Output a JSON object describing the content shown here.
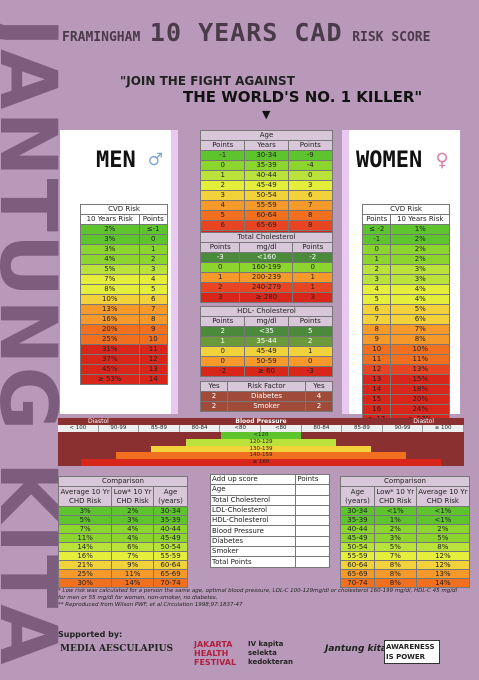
{
  "side_text": "JANTUNG KITA",
  "title": {
    "pre": "FRAMINGHAM",
    "big": "10 YEARS CAD",
    "post": "RISK SCORE"
  },
  "slogan": {
    "line1": "\"JOIN THE FIGHT AGAINST",
    "line2": "THE WORLD'S NO. 1 KILLER\""
  },
  "men": {
    "label": "MEN",
    "table_title": "CVD Risk",
    "col1": "10 Years Risk",
    "col2": "Points",
    "rows": [
      [
        "2%",
        "≤-1"
      ],
      [
        "3%",
        "0"
      ],
      [
        "3%",
        "1"
      ],
      [
        "4%",
        "2"
      ],
      [
        "5%",
        "3"
      ],
      [
        "7%",
        "4"
      ],
      [
        "8%",
        "5"
      ],
      [
        "10%",
        "6"
      ],
      [
        "13%",
        "7"
      ],
      [
        "16%",
        "8"
      ],
      [
        "20%",
        "9"
      ],
      [
        "25%",
        "10"
      ],
      [
        "31%",
        "11"
      ],
      [
        "37%",
        "12"
      ],
      [
        "45%",
        "13"
      ],
      [
        "≥ 53%",
        "14"
      ]
    ]
  },
  "women": {
    "label": "WOMEN",
    "table_title": "CVD Risk",
    "col1": "Points",
    "col2": "10 Years Risk",
    "rows": [
      [
        "≤ -2",
        "1%"
      ],
      [
        "-1",
        "2%"
      ],
      [
        "0",
        "2%"
      ],
      [
        "1",
        "2%"
      ],
      [
        "2",
        "3%"
      ],
      [
        "3",
        "3%"
      ],
      [
        "4",
        "4%"
      ],
      [
        "5",
        "4%"
      ],
      [
        "6",
        "5%"
      ],
      [
        "7",
        "6%"
      ],
      [
        "8",
        "7%"
      ],
      [
        "9",
        "8%"
      ],
      [
        "10",
        "10%"
      ],
      [
        "11",
        "11%"
      ],
      [
        "12",
        "13%"
      ],
      [
        "13",
        "15%"
      ],
      [
        "14",
        "18%"
      ],
      [
        "15",
        "20%"
      ],
      [
        "16",
        "24%"
      ],
      [
        "≥ 17",
        "≥ 27%"
      ]
    ]
  },
  "age": {
    "title": "Age",
    "cols": [
      "Points",
      "Years",
      "Points"
    ],
    "rows": [
      [
        "-1",
        "30-34",
        "-9"
      ],
      [
        "0",
        "35-39",
        "-4"
      ],
      [
        "1",
        "40-44",
        "0"
      ],
      [
        "2",
        "45-49",
        "3"
      ],
      [
        "3",
        "50-54",
        "6"
      ],
      [
        "4",
        "55-59",
        "7"
      ],
      [
        "5",
        "60-64",
        "8"
      ],
      [
        "6",
        "65-69",
        "8"
      ],
      [
        "7",
        "70-74",
        "8"
      ]
    ]
  },
  "chol": {
    "title": "Total Cholesterol",
    "cols": [
      "Points",
      "mg/dl",
      "Points"
    ],
    "rows": [
      [
        "-3",
        "<160",
        "-2"
      ],
      [
        "0",
        "160-199",
        "0"
      ],
      [
        "1",
        "200-239",
        "1"
      ],
      [
        "2",
        "240-279",
        "1"
      ],
      [
        "3",
        "≥ 280",
        "3"
      ]
    ]
  },
  "hdl": {
    "title": "HDL- Cholesterol",
    "cols": [
      "Points",
      "mg/dl",
      "Points"
    ],
    "rows": [
      [
        "2",
        "<35",
        "5"
      ],
      [
        "1",
        "35-44",
        "2"
      ],
      [
        "0",
        "45-49",
        "1"
      ],
      [
        "0",
        "50-59",
        "0"
      ],
      [
        "-2",
        "≥ 60",
        "-3"
      ]
    ]
  },
  "risk": {
    "cols": [
      "Yes",
      "Risk Factor",
      "Yes"
    ],
    "rows": [
      [
        "2",
        "Diabetes",
        "4"
      ],
      [
        "2",
        "Smoker",
        "2"
      ]
    ]
  },
  "bp": {
    "title": "Blood Pressure",
    "left": "Diastol",
    "right": "Diastol",
    "center": "Sistol",
    "scale": [
      "< 100",
      "90-99",
      "85-89",
      "80-84",
      "<80",
      "<80",
      "80-84",
      "85-89",
      "90-99",
      "≥ 100"
    ],
    "sys": [
      "<120",
      "120-129",
      "130-139",
      "140-159",
      "≥ 160"
    ]
  },
  "cmp_men": {
    "title": "Comparison",
    "cols": [
      "Average 10 Yr CHD Risk",
      "Low* 10 Yr CHD Risk",
      "Age (years)"
    ],
    "rows": [
      [
        "3%",
        "2%",
        "30-34"
      ],
      [
        "5%",
        "3%",
        "35-39"
      ],
      [
        "7%",
        "4%",
        "40-44"
      ],
      [
        "11%",
        "4%",
        "45-49"
      ],
      [
        "14%",
        "6%",
        "50-54"
      ],
      [
        "16%",
        "7%",
        "55-59"
      ],
      [
        "21%",
        "9%",
        "60-64"
      ],
      [
        "25%",
        "11%",
        "65-69"
      ],
      [
        "30%",
        "14%",
        "70-74"
      ]
    ]
  },
  "cmp_women": {
    "title": "Comparison",
    "cols": [
      "Age (years)",
      "Low* 10 Yr CHD Risk",
      "Average 10 Yr CHD Risk"
    ],
    "rows": [
      [
        "30-34",
        "<1%",
        "<1%"
      ],
      [
        "35-39",
        "1%",
        "<1%"
      ],
      [
        "40-44",
        "2%",
        "2%"
      ],
      [
        "45-49",
        "3%",
        "5%"
      ],
      [
        "50-54",
        "5%",
        "8%"
      ],
      [
        "55-59",
        "7%",
        "12%"
      ],
      [
        "60-64",
        "8%",
        "12%"
      ],
      [
        "65-69",
        "8%",
        "13%"
      ],
      [
        "70-74",
        "8%",
        "14%"
      ]
    ]
  },
  "score": {
    "head": "Add up score",
    "head2": "Points",
    "rows": [
      "Age",
      "Total Cholesterol",
      "LDL-Cholesterol",
      "HDL-Cholesterol",
      "Blood Pressure",
      "Diabetes",
      "Smoker",
      "Total Points"
    ]
  },
  "notes": [
    "* Low risk was calculated for a person the same age, optimal blood pressure, LDL-C 100-129mg/dl or cholesterol 160-199 mg/dl, HDL-C 45 mg/dl for men or 55 mg/dl for women, non-smoker, no diabetes.",
    "** Reproduced from Wilson PWF, et al.Circulation 1998;97:1837-47"
  ],
  "support": "Supported by:",
  "logos": [
    "MEDIA AESCULAPIUS",
    "JAKARTA HEALTH FESTIVAL",
    "IV kapita selekta kedokteran",
    "Jantung kita",
    "AWARENESS IS POWER"
  ]
}
